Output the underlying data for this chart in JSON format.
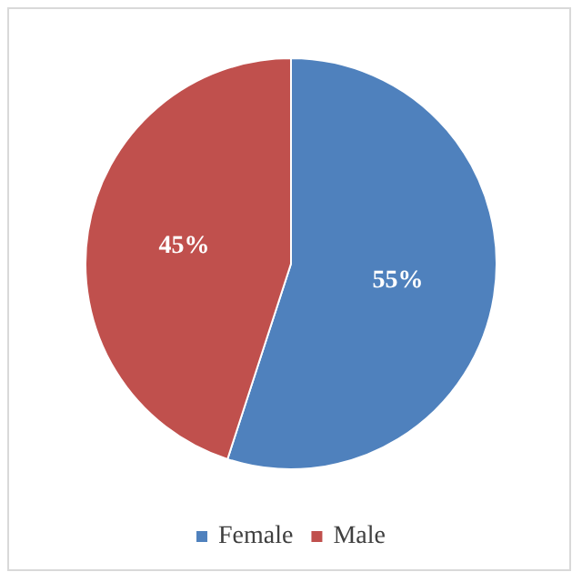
{
  "chart_data": {
    "type": "pie",
    "categories": [
      "Female",
      "Male"
    ],
    "values": [
      55,
      45
    ],
    "colors": [
      "#4f81bd",
      "#c0504d"
    ],
    "value_labels": [
      "55%",
      "45%"
    ],
    "legend": "bottom"
  }
}
